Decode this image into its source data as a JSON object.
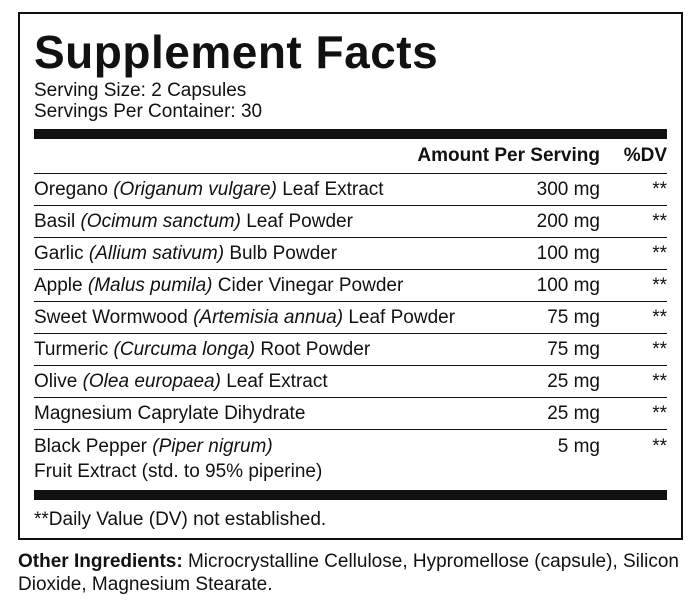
{
  "title": "Supplement Facts",
  "serving_size": "Serving Size: 2 Capsules",
  "servings_per_container": "Servings Per Container: 30",
  "header": {
    "amount": "Amount Per Serving",
    "dv": "%DV"
  },
  "rows": [
    {
      "name": "Oregano",
      "latin": "(Origanum vulgare)",
      "part": "Leaf Extract",
      "amount": "300 mg",
      "dv": "**"
    },
    {
      "name": "Basil",
      "latin": "(Ocimum sanctum)",
      "part": "Leaf Powder",
      "amount": "200 mg",
      "dv": "**"
    },
    {
      "name": "Garlic",
      "latin": "(Allium sativum)",
      "part": "Bulb Powder",
      "amount": "100 mg",
      "dv": "**"
    },
    {
      "name": "Apple",
      "latin": "(Malus pumila)",
      "part": "Cider Vinegar Powder",
      "amount": "100 mg",
      "dv": "**"
    },
    {
      "name": "Sweet Wormwood",
      "latin": "(Artemisia annua)",
      "part": "Leaf Powder",
      "amount": "75 mg",
      "dv": "**"
    },
    {
      "name": "Turmeric",
      "latin": "(Curcuma longa)",
      "part": "Root Powder",
      "amount": "75 mg",
      "dv": "**"
    },
    {
      "name": "Olive",
      "latin": "(Olea europaea)",
      "part": "Leaf Extract",
      "amount": "25 mg",
      "dv": "**"
    },
    {
      "name": "Magnesium Caprylate Dihydrate",
      "amount": "25 mg",
      "dv": "**"
    },
    {
      "name": "Black Pepper",
      "latin": "(Piper nigrum)",
      "second_line": "Fruit Extract (std. to 95% piperine)",
      "amount": "5 mg",
      "dv": "**"
    }
  ],
  "footnote": "**Daily Value (DV) not established.",
  "other_ingredients": {
    "label": "Other Ingredients:",
    "text": "Microcrystalline Cellulose, Hypromellose (capsule), Silicon Dioxide, Magnesium Stearate."
  }
}
